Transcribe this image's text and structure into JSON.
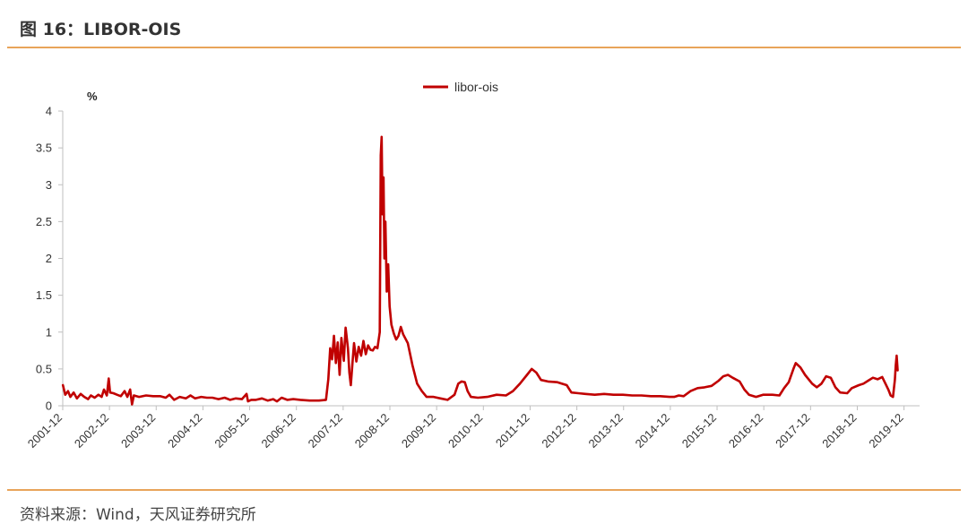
{
  "figure": {
    "title": "图 16：LIBOR-OIS",
    "source": "资料来源：Wind，天风证券研究所"
  },
  "colors": {
    "series": "#c00000",
    "rule": "#e8a45a",
    "axis": "#bfbfbf"
  },
  "chart_data": {
    "type": "line",
    "title": "",
    "xlabel": "",
    "ylabel": "%",
    "ylim": [
      0,
      4
    ],
    "yticks": [
      "0",
      "0.5",
      "1",
      "1.5",
      "2",
      "2.5",
      "3",
      "3.5",
      "4"
    ],
    "xticks": [
      "2001-12",
      "2002-12",
      "2003-12",
      "2004-12",
      "2005-12",
      "2006-12",
      "2007-12",
      "2008-12",
      "2009-12",
      "2010-12",
      "2011-12",
      "2012-12",
      "2013-12",
      "2014-12",
      "2015-12",
      "2016-12",
      "2017-12",
      "2018-12",
      "2019-12"
    ],
    "xlim": [
      2001.917,
      2020.25
    ],
    "legend": "top-center",
    "grid": false,
    "series": [
      {
        "name": "libor-ois",
        "points": [
          [
            2001.92,
            0.28
          ],
          [
            2001.97,
            0.15
          ],
          [
            2002.03,
            0.2
          ],
          [
            2002.08,
            0.12
          ],
          [
            2002.15,
            0.18
          ],
          [
            2002.22,
            0.1
          ],
          [
            2002.3,
            0.16
          ],
          [
            2002.38,
            0.12
          ],
          [
            2002.46,
            0.09
          ],
          [
            2002.52,
            0.14
          ],
          [
            2002.6,
            0.11
          ],
          [
            2002.68,
            0.15
          ],
          [
            2002.75,
            0.12
          ],
          [
            2002.8,
            0.22
          ],
          [
            2002.86,
            0.14
          ],
          [
            2002.9,
            0.37
          ],
          [
            2002.93,
            0.18
          ],
          [
            2003.0,
            0.17
          ],
          [
            2003.08,
            0.15
          ],
          [
            2003.16,
            0.13
          ],
          [
            2003.24,
            0.2
          ],
          [
            2003.3,
            0.12
          ],
          [
            2003.36,
            0.22
          ],
          [
            2003.4,
            0.02
          ],
          [
            2003.44,
            0.14
          ],
          [
            2003.55,
            0.12
          ],
          [
            2003.7,
            0.14
          ],
          [
            2003.85,
            0.13
          ],
          [
            2004.0,
            0.13
          ],
          [
            2004.12,
            0.11
          ],
          [
            2004.2,
            0.15
          ],
          [
            2004.3,
            0.08
          ],
          [
            2004.42,
            0.12
          ],
          [
            2004.55,
            0.1
          ],
          [
            2004.65,
            0.14
          ],
          [
            2004.75,
            0.1
          ],
          [
            2004.88,
            0.12
          ],
          [
            2005.0,
            0.11
          ],
          [
            2005.12,
            0.11
          ],
          [
            2005.25,
            0.09
          ],
          [
            2005.38,
            0.11
          ],
          [
            2005.5,
            0.08
          ],
          [
            2005.62,
            0.1
          ],
          [
            2005.75,
            0.09
          ],
          [
            2005.85,
            0.16
          ],
          [
            2005.88,
            0.06
          ],
          [
            2005.95,
            0.08
          ],
          [
            2006.05,
            0.08
          ],
          [
            2006.18,
            0.1
          ],
          [
            2006.3,
            0.07
          ],
          [
            2006.42,
            0.09
          ],
          [
            2006.5,
            0.06
          ],
          [
            2006.6,
            0.11
          ],
          [
            2006.72,
            0.08
          ],
          [
            2006.85,
            0.09
          ],
          [
            2007.0,
            0.08
          ],
          [
            2007.2,
            0.07
          ],
          [
            2007.4,
            0.07
          ],
          [
            2007.55,
            0.08
          ],
          [
            2007.6,
            0.36
          ],
          [
            2007.64,
            0.78
          ],
          [
            2007.68,
            0.63
          ],
          [
            2007.72,
            0.95
          ],
          [
            2007.76,
            0.58
          ],
          [
            2007.8,
            0.86
          ],
          [
            2007.84,
            0.42
          ],
          [
            2007.88,
            0.92
          ],
          [
            2007.93,
            0.61
          ],
          [
            2007.97,
            1.06
          ],
          [
            2008.02,
            0.78
          ],
          [
            2008.05,
            0.45
          ],
          [
            2008.08,
            0.28
          ],
          [
            2008.12,
            0.62
          ],
          [
            2008.15,
            0.85
          ],
          [
            2008.2,
            0.6
          ],
          [
            2008.25,
            0.8
          ],
          [
            2008.3,
            0.68
          ],
          [
            2008.35,
            0.88
          ],
          [
            2008.4,
            0.7
          ],
          [
            2008.45,
            0.82
          ],
          [
            2008.5,
            0.76
          ],
          [
            2008.55,
            0.75
          ],
          [
            2008.6,
            0.8
          ],
          [
            2008.65,
            0.78
          ],
          [
            2008.7,
            1.0
          ],
          [
            2008.72,
            3.4
          ],
          [
            2008.74,
            3.65
          ],
          [
            2008.76,
            2.6
          ],
          [
            2008.78,
            3.1
          ],
          [
            2008.8,
            2.0
          ],
          [
            2008.82,
            2.5
          ],
          [
            2008.85,
            1.55
          ],
          [
            2008.88,
            1.92
          ],
          [
            2008.91,
            1.35
          ],
          [
            2008.95,
            1.1
          ],
          [
            2009.0,
            0.98
          ],
          [
            2009.05,
            0.9
          ],
          [
            2009.1,
            0.95
          ],
          [
            2009.15,
            1.07
          ],
          [
            2009.2,
            0.97
          ],
          [
            2009.3,
            0.85
          ],
          [
            2009.4,
            0.55
          ],
          [
            2009.5,
            0.3
          ],
          [
            2009.6,
            0.2
          ],
          [
            2009.7,
            0.12
          ],
          [
            2009.85,
            0.12
          ],
          [
            2010.0,
            0.1
          ],
          [
            2010.15,
            0.08
          ],
          [
            2010.3,
            0.15
          ],
          [
            2010.38,
            0.3
          ],
          [
            2010.45,
            0.33
          ],
          [
            2010.52,
            0.32
          ],
          [
            2010.58,
            0.2
          ],
          [
            2010.65,
            0.12
          ],
          [
            2010.8,
            0.11
          ],
          [
            2011.0,
            0.12
          ],
          [
            2011.2,
            0.15
          ],
          [
            2011.4,
            0.14
          ],
          [
            2011.55,
            0.2
          ],
          [
            2011.7,
            0.3
          ],
          [
            2011.85,
            0.42
          ],
          [
            2011.95,
            0.5
          ],
          [
            2012.05,
            0.45
          ],
          [
            2012.15,
            0.35
          ],
          [
            2012.3,
            0.33
          ],
          [
            2012.5,
            0.32
          ],
          [
            2012.7,
            0.28
          ],
          [
            2012.8,
            0.18
          ],
          [
            2012.95,
            0.17
          ],
          [
            2013.1,
            0.16
          ],
          [
            2013.3,
            0.15
          ],
          [
            2013.5,
            0.16
          ],
          [
            2013.7,
            0.15
          ],
          [
            2013.9,
            0.15
          ],
          [
            2014.1,
            0.14
          ],
          [
            2014.3,
            0.14
          ],
          [
            2014.5,
            0.13
          ],
          [
            2014.7,
            0.13
          ],
          [
            2014.9,
            0.12
          ],
          [
            2015.0,
            0.12
          ],
          [
            2015.1,
            0.14
          ],
          [
            2015.2,
            0.13
          ],
          [
            2015.35,
            0.2
          ],
          [
            2015.5,
            0.24
          ],
          [
            2015.65,
            0.25
          ],
          [
            2015.8,
            0.27
          ],
          [
            2015.95,
            0.34
          ],
          [
            2016.05,
            0.4
          ],
          [
            2016.15,
            0.42
          ],
          [
            2016.25,
            0.38
          ],
          [
            2016.4,
            0.33
          ],
          [
            2016.5,
            0.22
          ],
          [
            2016.6,
            0.15
          ],
          [
            2016.75,
            0.12
          ],
          [
            2016.9,
            0.15
          ],
          [
            2017.1,
            0.15
          ],
          [
            2017.25,
            0.14
          ],
          [
            2017.35,
            0.24
          ],
          [
            2017.45,
            0.32
          ],
          [
            2017.55,
            0.5
          ],
          [
            2017.6,
            0.58
          ],
          [
            2017.7,
            0.52
          ],
          [
            2017.8,
            0.42
          ],
          [
            2017.95,
            0.3
          ],
          [
            2018.05,
            0.25
          ],
          [
            2018.15,
            0.3
          ],
          [
            2018.25,
            0.4
          ],
          [
            2018.35,
            0.38
          ],
          [
            2018.45,
            0.25
          ],
          [
            2018.55,
            0.18
          ],
          [
            2018.7,
            0.17
          ],
          [
            2018.8,
            0.24
          ],
          [
            2018.95,
            0.28
          ],
          [
            2019.05,
            0.3
          ],
          [
            2019.15,
            0.34
          ],
          [
            2019.25,
            0.38
          ],
          [
            2019.35,
            0.36
          ],
          [
            2019.45,
            0.39
          ],
          [
            2019.52,
            0.3
          ],
          [
            2019.58,
            0.22
          ],
          [
            2019.63,
            0.14
          ],
          [
            2019.68,
            0.12
          ],
          [
            2019.72,
            0.35
          ],
          [
            2019.74,
            0.55
          ],
          [
            2019.76,
            0.68
          ],
          [
            2019.78,
            0.48
          ]
        ]
      }
    ]
  }
}
